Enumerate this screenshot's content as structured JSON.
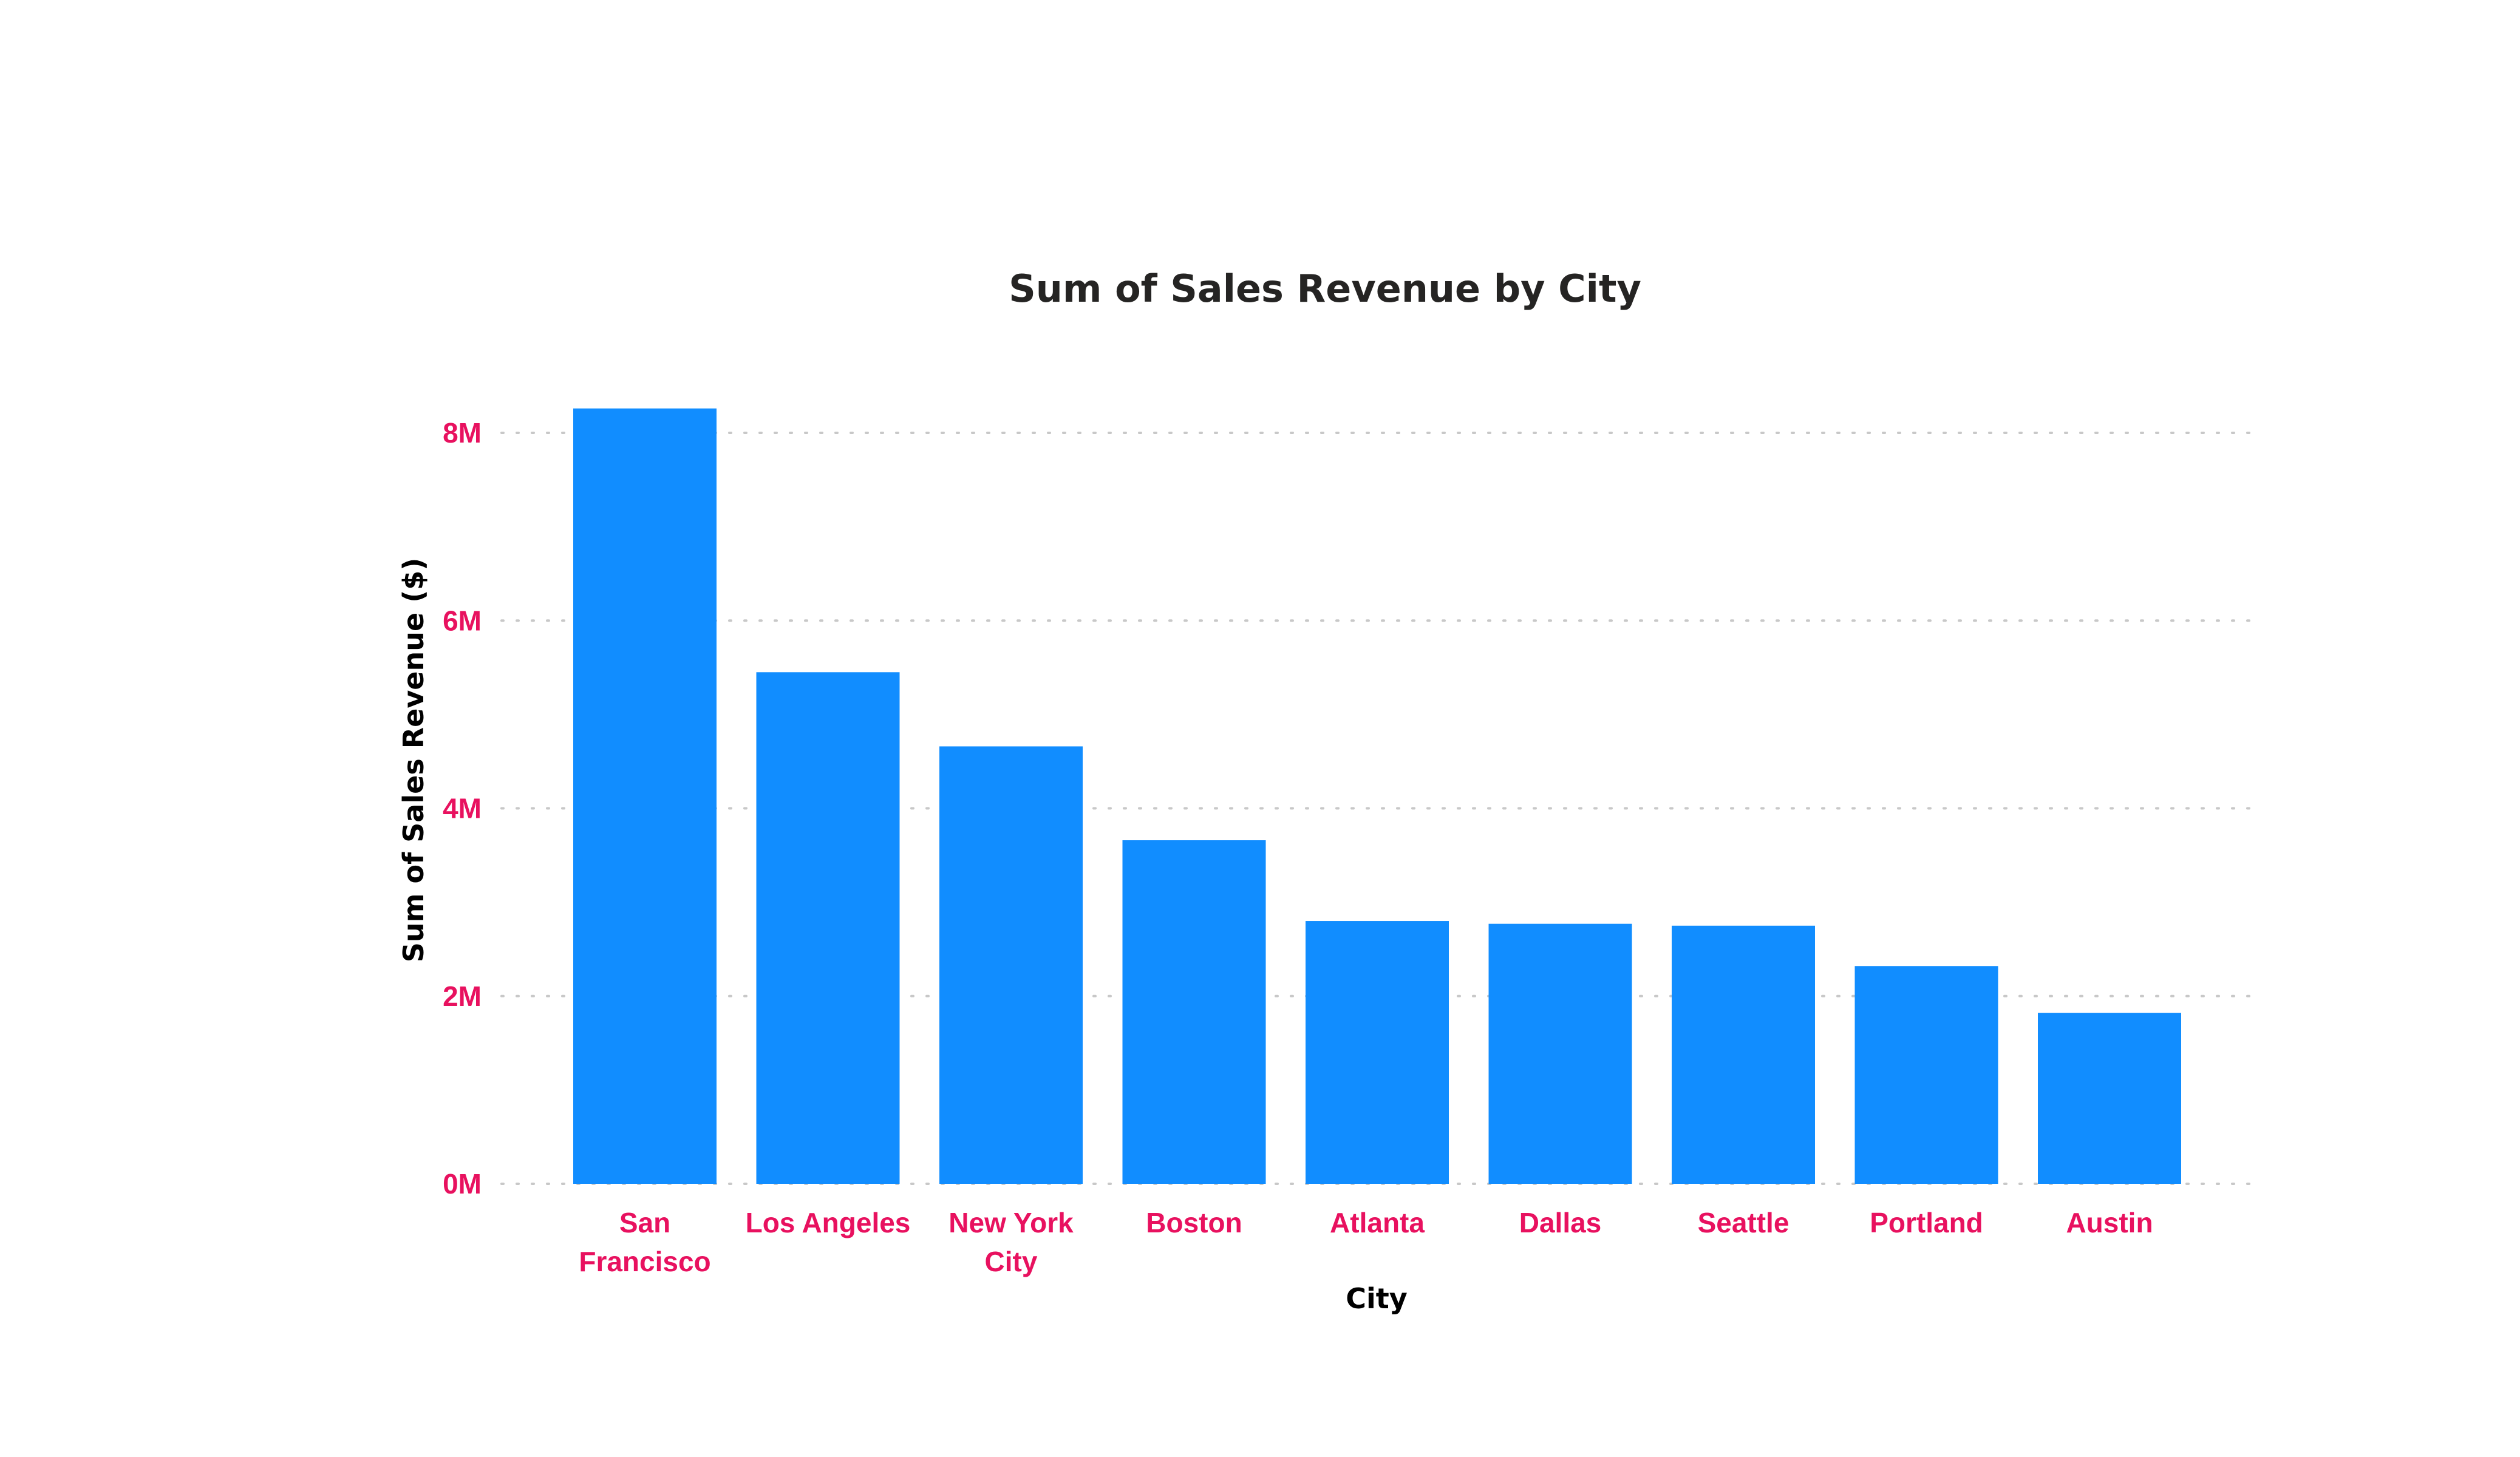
{
  "chart_data": {
    "type": "bar",
    "title": "Sum of Sales Revenue by City",
    "xlabel": "City",
    "ylabel": "Sum of Sales Revenue ($)",
    "categories": [
      "San Francisco",
      "Los Angeles",
      "New York City",
      "Boston",
      "Atlanta",
      "Dallas",
      "Seattle",
      "Portland",
      "Austin"
    ],
    "values": [
      8260000,
      5450000,
      4660000,
      3660000,
      2800000,
      2770000,
      2750000,
      2320000,
      1820000
    ],
    "y_ticks": [
      0,
      2000000,
      4000000,
      6000000,
      8000000
    ],
    "y_tick_labels": [
      "0M",
      "2M",
      "4M",
      "6M",
      "8M"
    ],
    "ylim": [
      0,
      8000000
    ],
    "grid": true,
    "legend": "none",
    "colors": {
      "bar": "#118DFF",
      "tick_label": "#E8115F",
      "title": "#252423",
      "axis_title": "#000000"
    }
  }
}
